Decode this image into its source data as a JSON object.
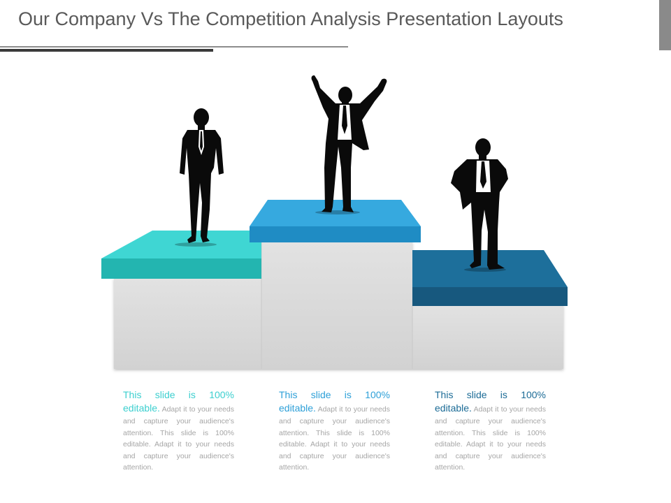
{
  "slide": {
    "title": "Our Company Vs The Competition Analysis Presentation Layouts"
  },
  "colors": {
    "teal": "#3ccfcf",
    "blue": "#2ea0d8",
    "navy": "#1b6b96",
    "podium_gray": "#dedede"
  },
  "figures": [
    {
      "icon": "businessman-standing-hands-in-pockets-icon"
    },
    {
      "icon": "businessman-arms-raised-icon"
    },
    {
      "icon": "businessman-hands-on-hips-icon"
    }
  ],
  "text_blocks": [
    {
      "lead": "This slide is 100% editable.",
      "body": " Adapt it to your needs and capture your audience's attention. This slide is 100% editable. Adapt it to your needs and capture your audience's attention.",
      "lead_color": "#3ccfcf"
    },
    {
      "lead": "This slide is 100% editable.",
      "body": " Adapt it to your needs and capture your audience's attention. This slide is 100% editable. Adapt it to your needs and capture your audience's attention.",
      "lead_color": "#2ea0d8"
    },
    {
      "lead": "This slide is 100% editable.",
      "body": " Adapt it to your needs and capture your audience's attention. This slide is 100% editable. Adapt it to your needs and capture your audience's attention.",
      "lead_color": "#1b6b96"
    }
  ]
}
